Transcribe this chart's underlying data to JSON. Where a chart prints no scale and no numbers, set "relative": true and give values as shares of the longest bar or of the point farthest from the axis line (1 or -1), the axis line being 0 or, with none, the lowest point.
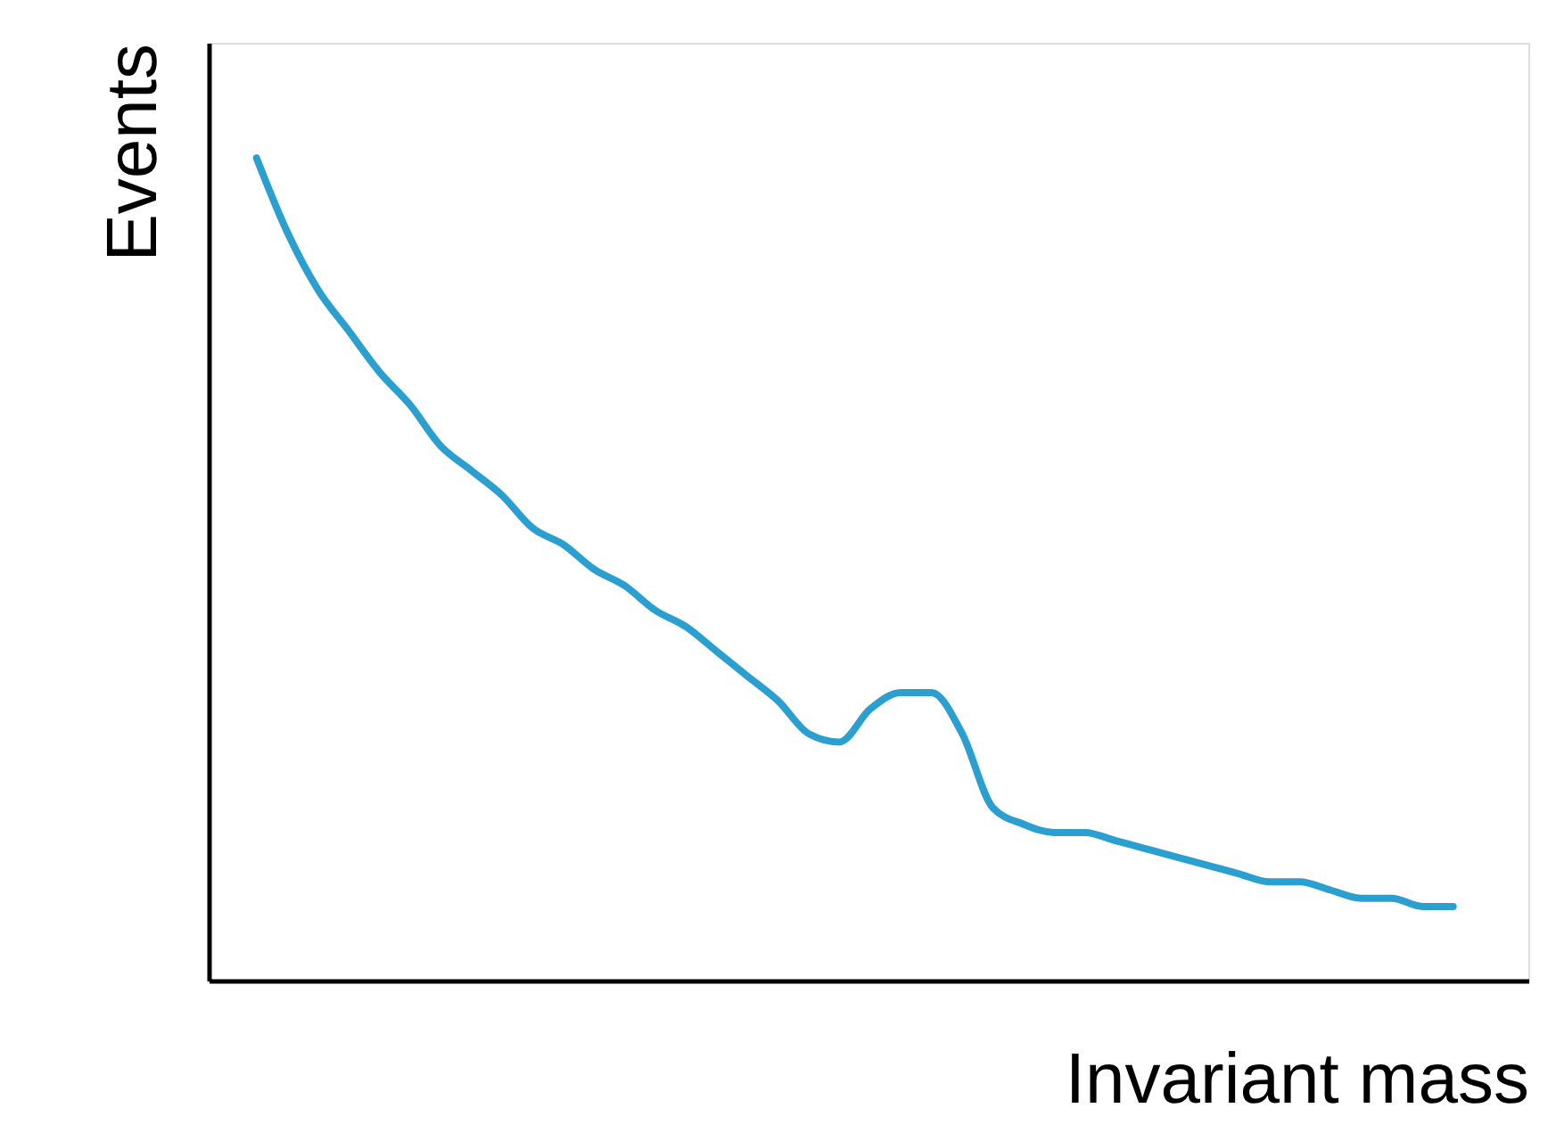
{
  "chart_data": {
    "type": "line",
    "relative": true,
    "xlabel": "Invariant mass",
    "ylabel": "Events",
    "grid": false,
    "tick_labels": false,
    "marker": "none",
    "line_style": "solid",
    "categories": [
      null,
      null,
      null,
      null,
      null,
      null,
      null,
      null,
      null,
      null,
      null,
      null,
      null,
      null,
      null,
      null,
      null,
      null,
      null,
      null,
      null,
      null,
      null,
      null,
      null,
      null,
      null,
      null,
      null,
      null,
      null,
      null,
      null,
      null,
      null,
      null,
      null,
      null,
      null,
      null
    ],
    "series": [
      {
        "color": "#2b9fcf",
        "values": [
          1.0,
          0.91,
          0.84,
          0.79,
          0.74,
          0.7,
          0.65,
          0.62,
          0.59,
          0.55,
          0.53,
          0.5,
          0.48,
          0.45,
          0.43,
          0.4,
          0.37,
          0.34,
          0.3,
          0.29,
          0.33,
          0.35,
          0.35,
          0.3,
          0.21,
          0.19,
          0.18,
          0.18,
          0.17,
          0.16,
          0.15,
          0.14,
          0.13,
          0.12,
          0.12,
          0.11,
          0.1,
          0.1,
          0.09,
          0.09
        ]
      }
    ]
  }
}
